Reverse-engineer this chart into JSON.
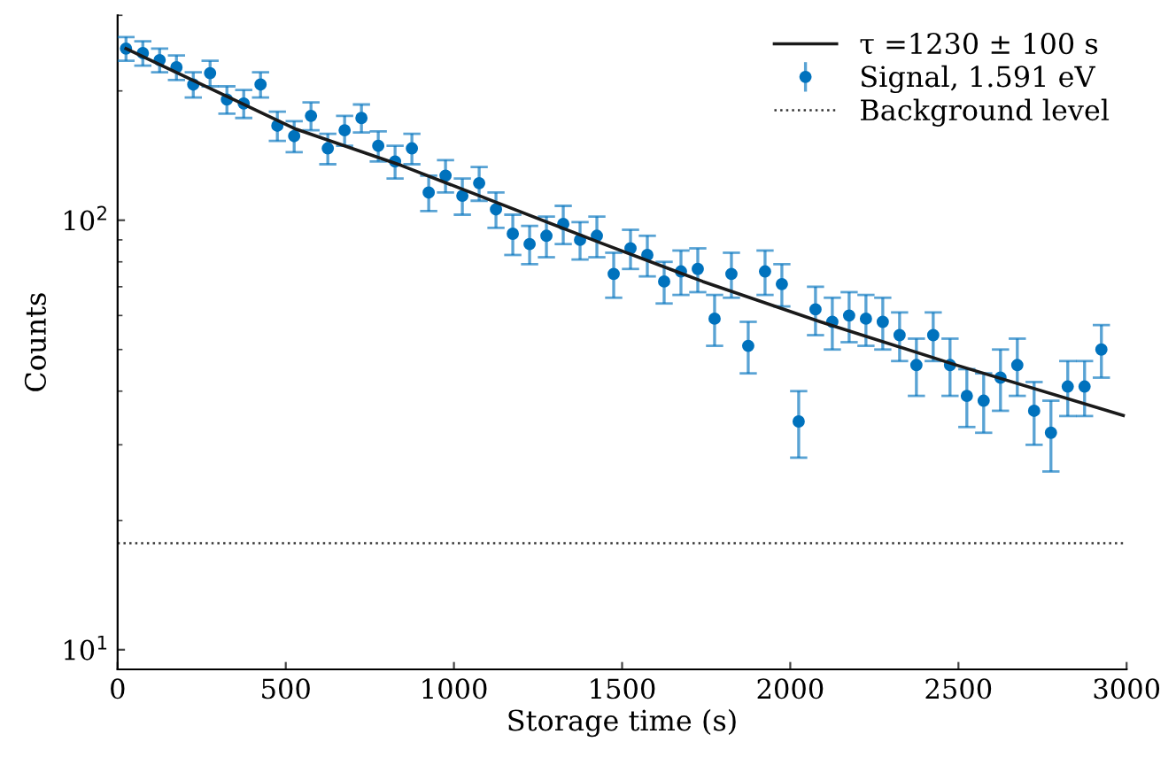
{
  "chart_data": {
    "type": "scatter",
    "xlabel": "Storage time (s)",
    "ylabel": "Counts",
    "log": "y",
    "xlim": [
      0,
      3000
    ],
    "xticks": [
      0,
      500,
      1000,
      1500,
      2000,
      2500,
      3000
    ],
    "ylim": [
      9,
      300
    ],
    "yticks": [
      {
        "value": 10,
        "label": "10$^{1}$"
      },
      {
        "value": 100,
        "label": "10$^{2}$"
      }
    ],
    "legend": "top right",
    "grid": false,
    "series": [
      {
        "name": "τ =1230 ± 100 s",
        "type": "line",
        "color": "#1a1a1a",
        "line_style": "solid",
        "marker": "none",
        "x": [
          25,
          530,
          845,
          1440,
          1740,
          2090,
          2490,
          2990
        ],
        "values": [
          251,
          163,
          134,
          88.3,
          72,
          58,
          46.1,
          35.1
        ]
      },
      {
        "name": "Signal, 1.591 eV",
        "color": "#0072bd",
        "marker": "circle",
        "x": [
          25,
          75,
          125,
          175,
          225,
          275,
          325,
          375,
          425,
          475,
          525,
          575,
          625,
          675,
          725,
          775,
          825,
          875,
          925,
          975,
          1025,
          1075,
          1125,
          1175,
          1225,
          1275,
          1325,
          1375,
          1425,
          1475,
          1525,
          1575,
          1625,
          1675,
          1725,
          1775,
          1825,
          1875,
          1925,
          1975,
          2025,
          2075,
          2125,
          2175,
          2225,
          2275,
          2325,
          2375,
          2425,
          2475,
          2525,
          2575,
          2625,
          2675,
          2725,
          2775,
          2825,
          2875,
          2925
        ],
        "values": [
          251,
          245,
          236,
          227,
          207,
          220,
          191,
          187,
          207,
          166,
          157,
          175,
          147,
          162,
          173,
          149,
          137,
          147,
          116,
          127,
          114,
          122,
          106,
          93,
          88,
          92,
          98,
          90,
          92,
          75,
          86,
          83,
          72,
          76,
          77,
          59,
          75,
          51,
          76,
          71,
          34,
          62,
          58,
          60,
          59,
          58,
          54,
          46,
          54,
          46,
          39,
          38,
          43,
          46,
          36,
          32,
          41,
          41,
          50
        ],
        "errors": [
          16,
          16,
          15,
          15,
          14,
          15,
          14,
          14,
          14,
          13,
          13,
          13,
          12,
          13,
          13,
          12,
          12,
          12,
          11,
          11,
          11,
          11,
          10,
          10,
          9,
          10,
          10,
          9,
          10,
          9,
          9,
          9,
          8,
          9,
          9,
          8,
          9,
          7,
          9,
          8,
          6,
          8,
          8,
          8,
          8,
          8,
          7,
          7,
          7,
          7,
          6,
          6,
          7,
          7,
          6,
          6,
          6,
          6,
          7
        ]
      }
    ],
    "ref_lines": [
      {
        "axis": "y",
        "value": 17.7,
        "label": "Background level",
        "color": "#333333",
        "line_style": "dotted"
      }
    ]
  }
}
